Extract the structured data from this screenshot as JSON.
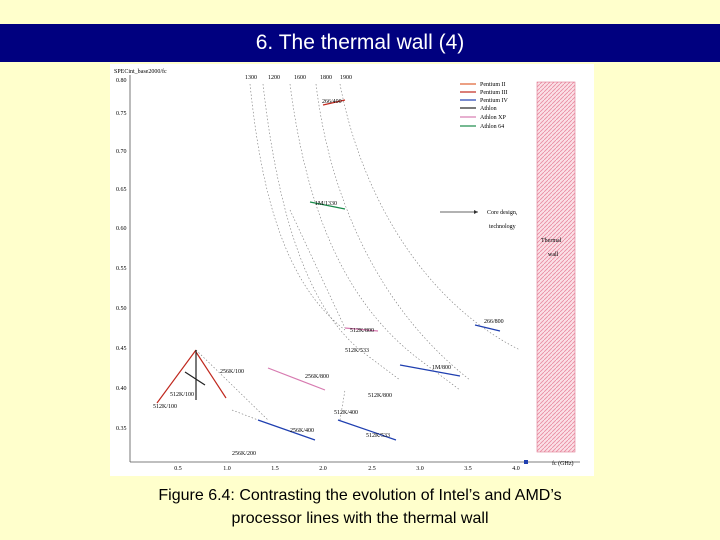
{
  "header": {
    "title": "6. The thermal wall (4)"
  },
  "figure": {
    "y_label": "SPECint_base2000/fc",
    "x_label": "fc (GHz)",
    "y_tick_labels": [
      "0.80",
      "0.75",
      "0.70",
      "0.65",
      "0.60",
      "0.55",
      "0.50",
      "0.45",
      "0.40",
      "0.35"
    ],
    "x_tick_labels": [
      "0.5",
      "1.0",
      "1.5",
      "2.0",
      "2.5",
      "3.0",
      "3.5",
      "4.0"
    ],
    "top_labels": [
      "1300",
      "1200",
      "1600",
      "1800",
      "1900"
    ],
    "legend": [
      "Pentium II",
      "Pentium III",
      "Pentium IV",
      "Athlon",
      "Athlon XP",
      "Athlon 64"
    ],
    "annotations": [
      "Core design,",
      "technology",
      "Thermal",
      "wall"
    ],
    "point_labels": [
      "266/400",
      "1M/1330",
      "266/800",
      "512K/800",
      "512K/533",
      "256K/800",
      "256K/100",
      "512K/100",
      "512K/100",
      "1M/800",
      "512K/800",
      "512K/400",
      "256K/400",
      "512K/533",
      "256K/200"
    ]
  },
  "caption": {
    "lines": [
      "Figure 6.4: Contrasting the evolution of Intel’s and AMD’s",
      "processor lines with the thermal wall"
    ]
  }
}
